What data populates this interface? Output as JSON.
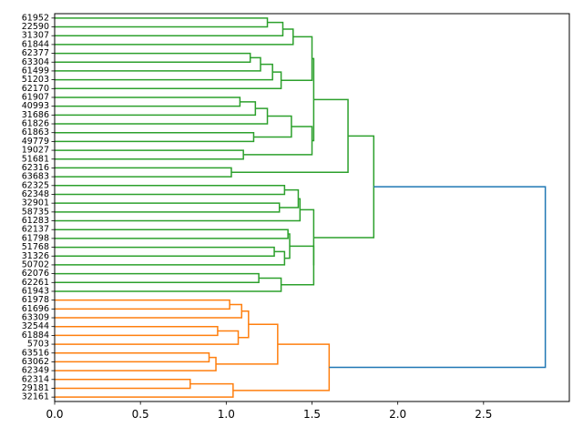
{
  "chart_data": {
    "type": "dendrogram",
    "orientation": "horizontal",
    "title": "",
    "xlabel": "",
    "ylabel": "",
    "xlim": [
      0,
      3.0
    ],
    "xticks": [
      0.0,
      0.5,
      1.0,
      1.5,
      2.0,
      2.5
    ],
    "xtick_labels": [
      "0.0",
      "0.5",
      "1.0",
      "1.5",
      "2.0",
      "2.5"
    ],
    "grid": false,
    "colors": {
      "green_cluster": "#2ca02c",
      "orange_cluster": "#ff7f0e",
      "root": "#1f77b4"
    },
    "leaves": [
      "61952",
      "22590",
      "31307",
      "61844",
      "62377",
      "63304",
      "61499",
      "51203",
      "62170",
      "61907",
      "40993",
      "31686",
      "61826",
      "61863",
      "49779",
      "19027",
      "51681",
      "62316",
      "63683",
      "62325",
      "62348",
      "32901",
      "58735",
      "61283",
      "62137",
      "61798",
      "51768",
      "31326",
      "50702",
      "62076",
      "62261",
      "61943",
      "61978",
      "61696",
      "63309",
      "32544",
      "61884",
      "5703",
      "63516",
      "63062",
      "62349",
      "62314",
      "29181",
      "32161"
    ],
    "merges": [
      {
        "id": 0,
        "a": "L0",
        "b": "L1",
        "height": 1.24,
        "color": "green_cluster"
      },
      {
        "id": 1,
        "a": "N0",
        "b": "L2",
        "height": 1.33,
        "color": "green_cluster"
      },
      {
        "id": 2,
        "a": "N1",
        "b": "L3",
        "height": 1.39,
        "color": "green_cluster"
      },
      {
        "id": 3,
        "a": "L4",
        "b": "L5",
        "height": 1.14,
        "color": "green_cluster"
      },
      {
        "id": 4,
        "a": "N3",
        "b": "L6",
        "height": 1.2,
        "color": "green_cluster"
      },
      {
        "id": 5,
        "a": "N4",
        "b": "L7",
        "height": 1.27,
        "color": "green_cluster"
      },
      {
        "id": 6,
        "a": "N5",
        "b": "L8",
        "height": 1.32,
        "color": "green_cluster"
      },
      {
        "id": 7,
        "a": "N2",
        "b": "N6",
        "height": 1.5,
        "color": "green_cluster"
      },
      {
        "id": 8,
        "a": "L9",
        "b": "L10",
        "height": 1.08,
        "color": "green_cluster"
      },
      {
        "id": 9,
        "a": "N8",
        "b": "L11",
        "height": 1.17,
        "color": "green_cluster"
      },
      {
        "id": 10,
        "a": "N9",
        "b": "L12",
        "height": 1.24,
        "color": "green_cluster"
      },
      {
        "id": 11,
        "a": "L13",
        "b": "L14",
        "height": 1.16,
        "color": "green_cluster"
      },
      {
        "id": 12,
        "a": "N10",
        "b": "N11",
        "height": 1.38,
        "color": "green_cluster"
      },
      {
        "id": 13,
        "a": "L15",
        "b": "L16",
        "height": 1.1,
        "color": "green_cluster"
      },
      {
        "id": 14,
        "a": "N12",
        "b": "N13",
        "height": 1.5,
        "color": "green_cluster"
      },
      {
        "id": 15,
        "a": "N7",
        "b": "N14",
        "height": 1.51,
        "color": "green_cluster"
      },
      {
        "id": 16,
        "a": "L17",
        "b": "L18",
        "height": 1.03,
        "color": "green_cluster"
      },
      {
        "id": 17,
        "a": "N15",
        "b": "N16",
        "height": 1.71,
        "color": "green_cluster"
      },
      {
        "id": 18,
        "a": "L19",
        "b": "L20",
        "height": 1.34,
        "color": "green_cluster"
      },
      {
        "id": 19,
        "a": "L21",
        "b": "L22",
        "height": 1.31,
        "color": "green_cluster"
      },
      {
        "id": 20,
        "a": "N18",
        "b": "N19",
        "height": 1.42,
        "color": "green_cluster"
      },
      {
        "id": 21,
        "a": "N20",
        "b": "L23",
        "height": 1.43,
        "color": "green_cluster"
      },
      {
        "id": 22,
        "a": "L24",
        "b": "L25",
        "height": 1.36,
        "color": "green_cluster"
      },
      {
        "id": 23,
        "a": "L26",
        "b": "L27",
        "height": 1.28,
        "color": "green_cluster"
      },
      {
        "id": 24,
        "a": "N23",
        "b": "L28",
        "height": 1.34,
        "color": "green_cluster"
      },
      {
        "id": 25,
        "a": "N22",
        "b": "N24",
        "height": 1.37,
        "color": "green_cluster"
      },
      {
        "id": 26,
        "a": "L29",
        "b": "L30",
        "height": 1.19,
        "color": "green_cluster"
      },
      {
        "id": 27,
        "a": "N26",
        "b": "L31",
        "height": 1.32,
        "color": "green_cluster"
      },
      {
        "id": 28,
        "a": "N25",
        "b": "N27",
        "height": 1.51,
        "color": "green_cluster"
      },
      {
        "id": 29,
        "a": "N21",
        "b": "N28",
        "height": 1.51,
        "color": "green_cluster"
      },
      {
        "id": 30,
        "a": "N17",
        "b": "N29",
        "height": 1.86,
        "color": "green_cluster"
      },
      {
        "id": 31,
        "a": "L32",
        "b": "L33",
        "height": 1.02,
        "color": "orange_cluster"
      },
      {
        "id": 32,
        "a": "N31",
        "b": "L34",
        "height": 1.09,
        "color": "orange_cluster"
      },
      {
        "id": 33,
        "a": "L35",
        "b": "L36",
        "height": 0.95,
        "color": "orange_cluster"
      },
      {
        "id": 34,
        "a": "N33",
        "b": "L37",
        "height": 1.07,
        "color": "orange_cluster"
      },
      {
        "id": 35,
        "a": "N32",
        "b": "N34",
        "height": 1.13,
        "color": "orange_cluster"
      },
      {
        "id": 36,
        "a": "L38",
        "b": "L39",
        "height": 0.9,
        "color": "orange_cluster"
      },
      {
        "id": 37,
        "a": "N36",
        "b": "L40",
        "height": 0.94,
        "color": "orange_cluster"
      },
      {
        "id": 38,
        "a": "N35",
        "b": "N37",
        "height": 1.3,
        "color": "orange_cluster"
      },
      {
        "id": 39,
        "a": "L41",
        "b": "L42",
        "height": 0.79,
        "color": "orange_cluster"
      },
      {
        "id": 40,
        "a": "N39",
        "b": "L43",
        "height": 1.04,
        "color": "orange_cluster"
      },
      {
        "id": 41,
        "a": "N38",
        "b": "N40",
        "height": 1.6,
        "color": "orange_cluster"
      },
      {
        "id": 42,
        "a": "N30",
        "b": "N41",
        "height": 2.86,
        "color": "root"
      }
    ]
  }
}
